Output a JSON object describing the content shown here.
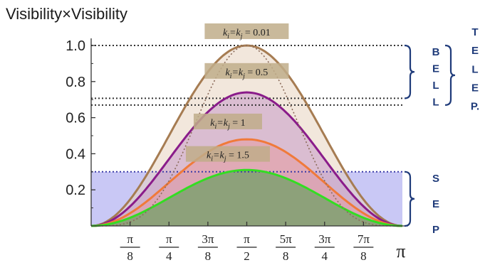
{
  "chart_data": {
    "type": "line",
    "ylabel": "Visibility×Visibility",
    "x_ticks": [
      {
        "num": "π",
        "den": "8",
        "x": 0.3927
      },
      {
        "num": "π",
        "den": "4",
        "x": 0.7854
      },
      {
        "num": "3π",
        "den": "8",
        "x": 1.1781
      },
      {
        "num": "π",
        "den": "2",
        "x": 1.5708
      },
      {
        "num": "5π",
        "den": "8",
        "x": 1.9635
      },
      {
        "num": "3π",
        "den": "4",
        "x": 2.3562
      },
      {
        "num": "7π",
        "den": "8",
        "x": 2.7489
      }
    ],
    "x_end_label": "π",
    "xlim": [
      0,
      3.1416
    ],
    "y_ticks": [
      "0.2",
      "0.4",
      "0.6",
      "0.8",
      "1.0"
    ],
    "ylim": [
      0,
      1.0
    ],
    "series": [
      {
        "name": "k_i=k_j=0.01",
        "peak": 1.0,
        "color": "#a67c52",
        "fill": "#e7d3bf"
      },
      {
        "name": "k_i=k_j=0.5",
        "peak": 0.74,
        "color": "#8a1c8a",
        "fill": "#c79ac9"
      },
      {
        "name": "k_i=k_j=1",
        "peak": 0.48,
        "color": "#f07a3a",
        "fill": "#e59aa0"
      },
      {
        "name": "k_i=k_j=1.5",
        "peak": 0.31,
        "color": "#33dd22",
        "fill": "#7fa070"
      }
    ],
    "annotations": [
      {
        "label_main": "k",
        "sub1": "i",
        "eq": "=k",
        "sub2": "j",
        "value": "= 0.01",
        "x": 1.57,
        "y": 1.075
      },
      {
        "label_main": "k",
        "sub1": "i",
        "eq": "=k",
        "sub2": "j",
        "value": "= 0.5",
        "x": 1.57,
        "y": 0.855
      },
      {
        "label_main": "k",
        "sub1": "i",
        "eq": "=k",
        "sub2": "j",
        "value": "= 1",
        "x": 1.38,
        "y": 0.575
      },
      {
        "label_main": "k",
        "sub1": "i",
        "eq": "=k",
        "sub2": "j",
        "value": "= 1.5",
        "x": 1.38,
        "y": 0.395
      }
    ],
    "thresholds": [
      {
        "y": 1.0,
        "style": "dotted"
      },
      {
        "y": 0.707,
        "style": "dotted"
      },
      {
        "y": 0.67,
        "style": "dotted"
      },
      {
        "y": 0.3,
        "style": "dotted"
      }
    ],
    "sep_band": {
      "y0": 0,
      "y1": 0.3,
      "color": "#c9c8f5"
    },
    "regions": [
      {
        "letters": [
          "B",
          "E",
          "L",
          "L"
        ],
        "y_top": 1.0,
        "y_bottom": 0.707
      },
      {
        "letters": [
          "T",
          "E",
          "L",
          "E",
          "P."
        ],
        "y_top": 1.0,
        "y_bottom": 0.67
      },
      {
        "letters": [
          "S",
          "E",
          "P"
        ],
        "y_top": 0.3,
        "y_bottom": 0.0
      }
    ]
  }
}
